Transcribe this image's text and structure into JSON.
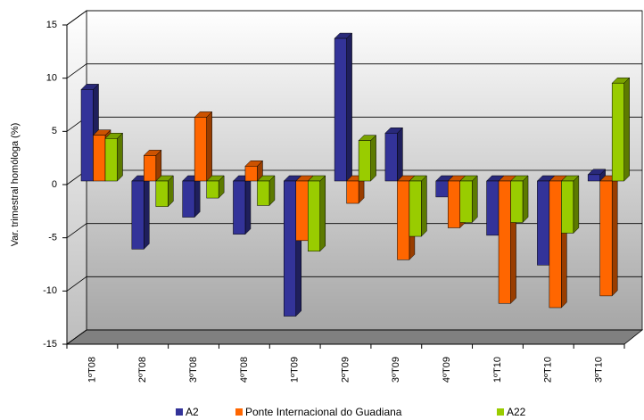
{
  "chart_data": {
    "type": "bar3d",
    "ylabel": "Var. trimestral homóloga (%)",
    "categories": [
      "1ºT08",
      "2ºT08",
      "3ºT08",
      "4ºT08",
      "1ºT09",
      "2ºT09",
      "3ºT09",
      "4ºT09",
      "1ºT10",
      "2ºT10",
      "3ºT10"
    ],
    "series": [
      {
        "name": "A2",
        "color": "#333399",
        "values": [
          8.6,
          -6.4,
          -3.4,
          -5.0,
          -12.7,
          13.4,
          4.5,
          -1.5,
          -5.1,
          -7.9,
          0.6
        ]
      },
      {
        "name": "Ponte Internacional do Guadiana",
        "color": "#ff6600",
        "values": [
          4.3,
          2.4,
          6.0,
          1.4,
          -5.6,
          -2.1,
          -7.4,
          -4.4,
          -11.5,
          -11.9,
          -10.8
        ]
      },
      {
        "name": "A22",
        "color": "#99cc00",
        "values": [
          4.0,
          -2.4,
          -1.6,
          -2.3,
          -6.6,
          3.8,
          -5.2,
          -3.9,
          -3.9,
          -4.9,
          9.2
        ]
      }
    ],
    "ylim": [
      -15,
      15
    ],
    "yticks": [
      -15,
      -10,
      -5,
      0,
      5,
      10,
      15
    ],
    "grid": true
  }
}
